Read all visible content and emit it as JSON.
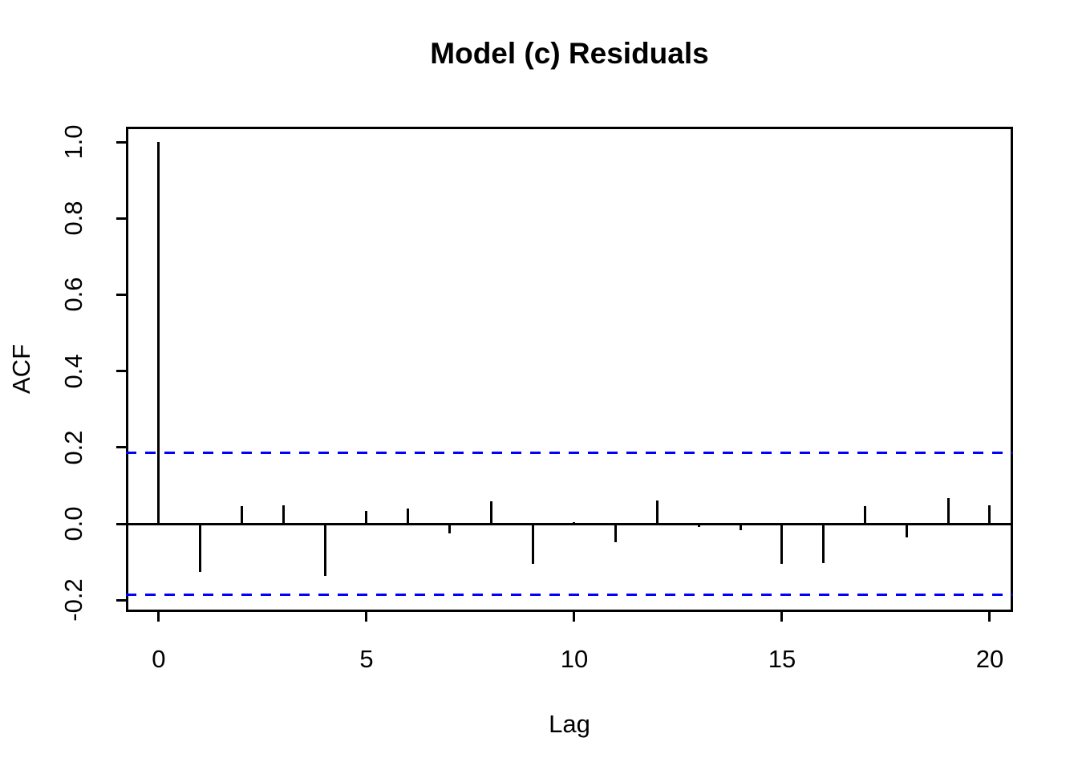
{
  "title": "Model (c) Residuals",
  "chart_data": {
    "type": "bar",
    "subtype": "acf-correlogram",
    "title": "Model (c) Residuals",
    "xlabel": "Lag",
    "ylabel": "ACF",
    "x": [
      0,
      1,
      2,
      3,
      4,
      5,
      6,
      7,
      8,
      9,
      10,
      11,
      12,
      13,
      14,
      15,
      16,
      17,
      18,
      19,
      20
    ],
    "values": [
      1.0,
      -0.126,
      0.046,
      0.048,
      -0.137,
      0.033,
      0.04,
      -0.025,
      0.058,
      -0.104,
      0.005,
      -0.048,
      0.061,
      -0.008,
      -0.016,
      -0.105,
      -0.102,
      0.046,
      -0.036,
      0.067,
      0.048
    ],
    "confidence_bounds": [
      -0.185,
      0.185
    ],
    "confidence_line_style": "dashed",
    "x_ticks": [
      0,
      5,
      10,
      15,
      20
    ],
    "x_tick_labels": [
      "0",
      "5",
      "10",
      "15",
      "20"
    ],
    "y_ticks": [
      -0.2,
      0.0,
      0.2,
      0.4,
      0.6,
      0.8,
      1.0
    ],
    "y_tick_labels": [
      "-0.2",
      "0.0",
      "0.2",
      "0.4",
      "0.6",
      "0.8",
      "1.0"
    ],
    "xlim": [
      -0.79,
      20.56
    ],
    "ylim": [
      -0.231,
      1.04
    ],
    "grid": false,
    "legend": "none",
    "colors": {
      "spike": "#000000",
      "confidence_line": "#0000ff",
      "axis": "#000000",
      "background": "#ffffff",
      "text": "#000000"
    }
  }
}
